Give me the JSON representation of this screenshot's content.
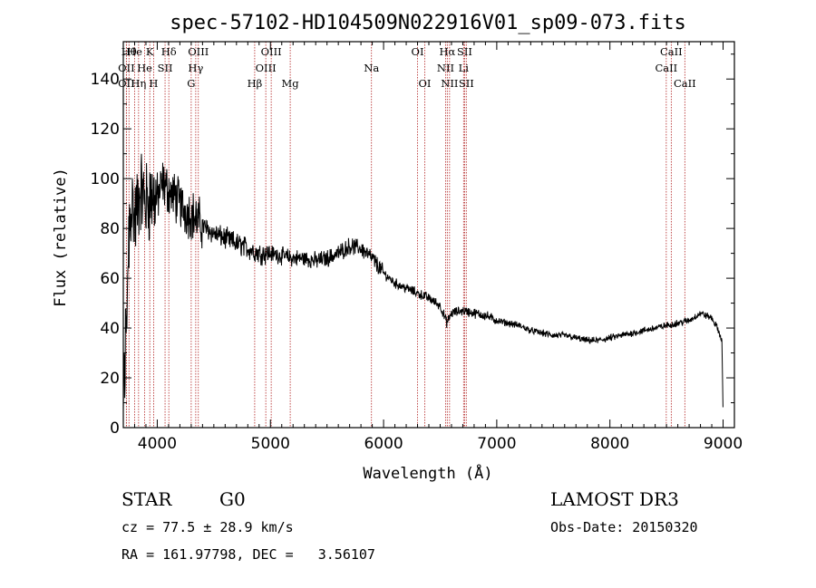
{
  "chart_data": {
    "type": "line",
    "title": "spec-57102-HD104509N022916V01_sp09-073.fits",
    "xlabel": "Wavelength (Å)",
    "ylabel": "Flux (relative)",
    "xlim": [
      3700,
      9100
    ],
    "ylim": [
      0,
      155
    ],
    "xticks": [
      4000,
      5000,
      6000,
      7000,
      8000,
      9000
    ],
    "yticks": [
      0,
      20,
      40,
      60,
      80,
      100,
      120,
      140
    ],
    "spectrum": [
      [
        3700,
        5
      ],
      [
        3720,
        35
      ],
      [
        3750,
        80
      ],
      [
        3780,
        92
      ],
      [
        3800,
        82
      ],
      [
        3850,
        96
      ],
      [
        3900,
        90
      ],
      [
        3950,
        93
      ],
      [
        4000,
        92
      ],
      [
        4050,
        98
      ],
      [
        4100,
        95
      ],
      [
        4150,
        93
      ],
      [
        4200,
        90
      ],
      [
        4250,
        87
      ],
      [
        4300,
        86
      ],
      [
        4400,
        81
      ],
      [
        4500,
        78
      ],
      [
        4600,
        76
      ],
      [
        4700,
        74
      ],
      [
        4800,
        72
      ],
      [
        4900,
        70
      ],
      [
        5000,
        70
      ],
      [
        5100,
        69
      ],
      [
        5200,
        68
      ],
      [
        5300,
        68
      ],
      [
        5400,
        67
      ],
      [
        5500,
        68
      ],
      [
        5600,
        70
      ],
      [
        5700,
        73
      ],
      [
        5800,
        72
      ],
      [
        5900,
        68
      ],
      [
        6000,
        62
      ],
      [
        6100,
        58
      ],
      [
        6200,
        56
      ],
      [
        6300,
        54
      ],
      [
        6400,
        52
      ],
      [
        6500,
        49
      ],
      [
        6560,
        42
      ],
      [
        6600,
        46
      ],
      [
        6700,
        47
      ],
      [
        6800,
        46
      ],
      [
        6900,
        45
      ],
      [
        7000,
        43
      ],
      [
        7100,
        42
      ],
      [
        7200,
        41
      ],
      [
        7300,
        39
      ],
      [
        7400,
        38
      ],
      [
        7500,
        37
      ],
      [
        7600,
        37
      ],
      [
        7700,
        36
      ],
      [
        7800,
        35
      ],
      [
        7900,
        35
      ],
      [
        8000,
        36
      ],
      [
        8100,
        37
      ],
      [
        8200,
        38
      ],
      [
        8300,
        39
      ],
      [
        8400,
        40
      ],
      [
        8500,
        41
      ],
      [
        8600,
        42
      ],
      [
        8700,
        43
      ],
      [
        8800,
        46
      ],
      [
        8900,
        44
      ],
      [
        8950,
        40
      ],
      [
        8990,
        35
      ],
      [
        9000,
        5
      ]
    ],
    "lines": [
      {
        "w": 3750,
        "label": "Hθ",
        "row": 0
      },
      {
        "w": 3727,
        "label": "OII",
        "row": 1
      },
      {
        "w": 3727,
        "label": "OII",
        "row": 2
      },
      {
        "w": 3800,
        "label": "He",
        "row": 0
      },
      {
        "w": 3835,
        "label": "Hη",
        "row": 2
      },
      {
        "w": 3889,
        "label": "He",
        "row": 1
      },
      {
        "w": 3934,
        "label": "K",
        "row": 0
      },
      {
        "w": 3968,
        "label": "H",
        "row": 2
      },
      {
        "w": 4069,
        "label": "SII",
        "row": 1
      },
      {
        "w": 4102,
        "label": "Hδ",
        "row": 0
      },
      {
        "w": 4300,
        "label": "G",
        "row": 2
      },
      {
        "w": 4340,
        "label": "Hγ",
        "row": 1
      },
      {
        "w": 4363,
        "label": "OIII",
        "row": 0
      },
      {
        "w": 4861,
        "label": "Hβ",
        "row": 2
      },
      {
        "w": 4959,
        "label": "OIII",
        "row": 1
      },
      {
        "w": 5007,
        "label": "OIII",
        "row": 0
      },
      {
        "w": 5175,
        "label": "Mg",
        "row": 2
      },
      {
        "w": 5893,
        "label": "Na",
        "row": 1
      },
      {
        "w": 6300,
        "label": "OI",
        "row": 0
      },
      {
        "w": 6364,
        "label": "OI",
        "row": 2
      },
      {
        "w": 6548,
        "label": "NII",
        "row": 1
      },
      {
        "w": 6563,
        "label": "Hα",
        "row": 0
      },
      {
        "w": 6583,
        "label": "NII",
        "row": 2
      },
      {
        "w": 6707,
        "label": "Li",
        "row": 1
      },
      {
        "w": 6716,
        "label": "SII",
        "row": 0
      },
      {
        "w": 6731,
        "label": "SII",
        "row": 2
      },
      {
        "w": 8498,
        "label": "CaII",
        "row": 1
      },
      {
        "w": 8542,
        "label": "CaII",
        "row": 0
      },
      {
        "w": 8662,
        "label": "CaII",
        "row": 2
      }
    ],
    "line_color": "#000000",
    "marker_color": "#b22222"
  },
  "info": {
    "class": "STAR",
    "subclass": "G0",
    "survey": "LAMOST DR3",
    "cz": "cz = 77.5 ± 28.9 km/s",
    "obs_date": "Obs-Date: 20150320",
    "coords": "RA = 161.97798, DEC =   3.56107"
  }
}
